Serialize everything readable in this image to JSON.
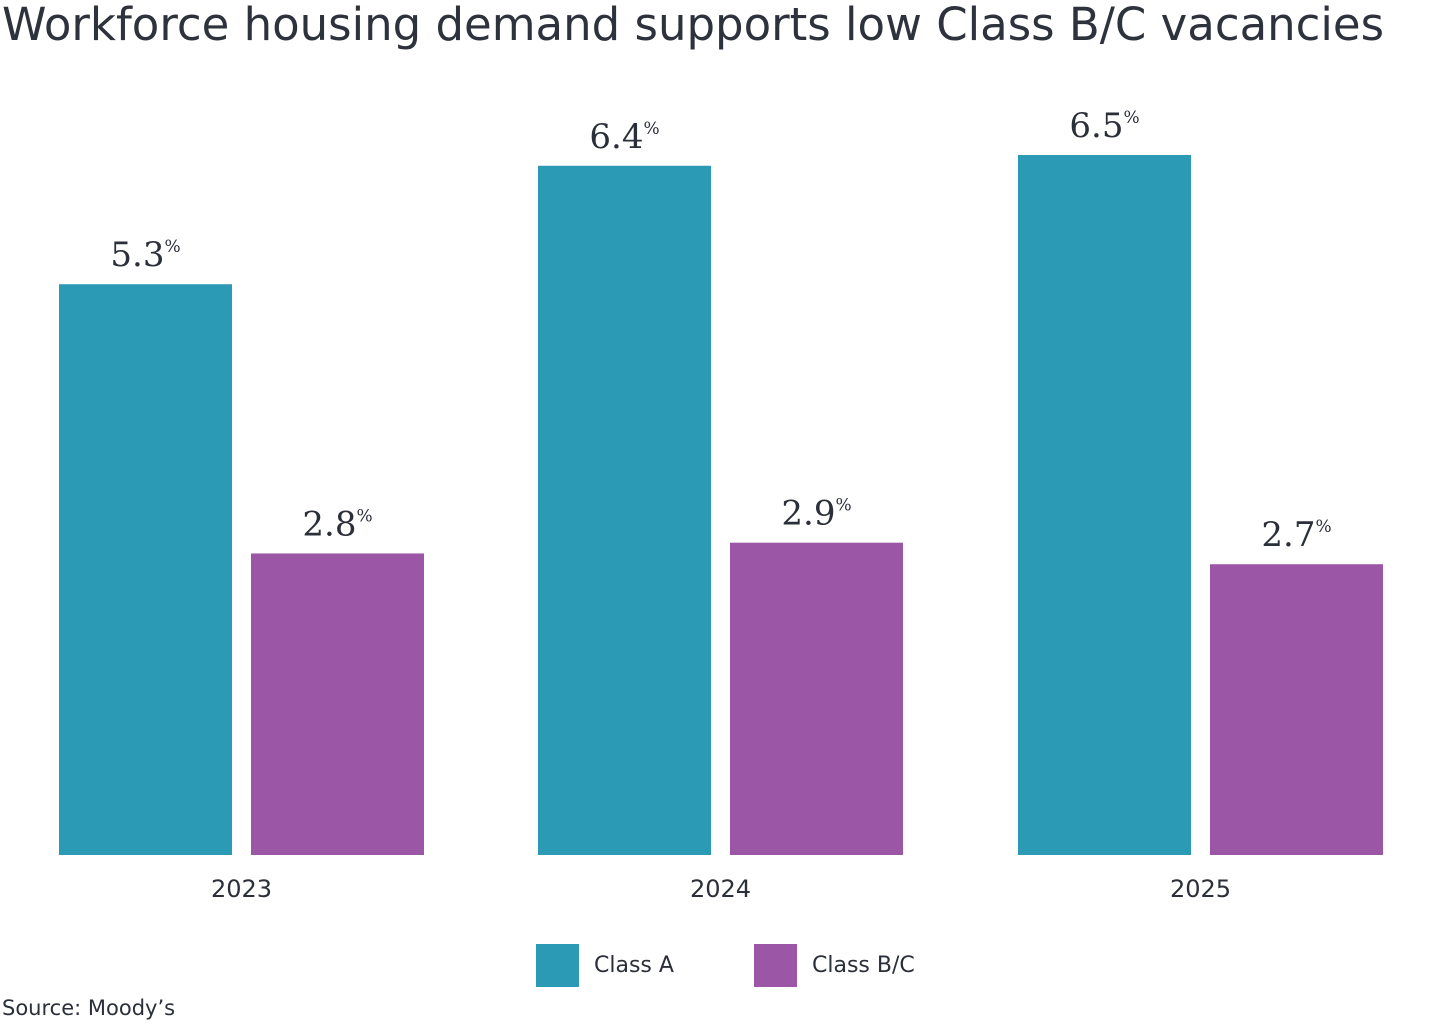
{
  "colors": {
    "class_a": "#2b9ab4",
    "class_bc": "#9b57a5"
  },
  "chart_data": {
    "type": "bar",
    "title": "Workforce housing demand supports low Class B/C vacancies",
    "categories": [
      "2023",
      "2024",
      "2025"
    ],
    "series": [
      {
        "name": "Class A",
        "values": [
          5.3,
          6.4,
          6.5
        ],
        "labels": [
          "5.3",
          "6.4",
          "6.5"
        ]
      },
      {
        "name": "Class B/C",
        "values": [
          2.8,
          2.9,
          2.7
        ],
        "labels": [
          "2.8",
          "2.9",
          "2.7"
        ]
      }
    ],
    "unit_suffix": "%",
    "ylim": [
      0,
      6.5
    ],
    "grid": false,
    "legend": "bottom-center"
  },
  "source": "Source: Moody’s"
}
